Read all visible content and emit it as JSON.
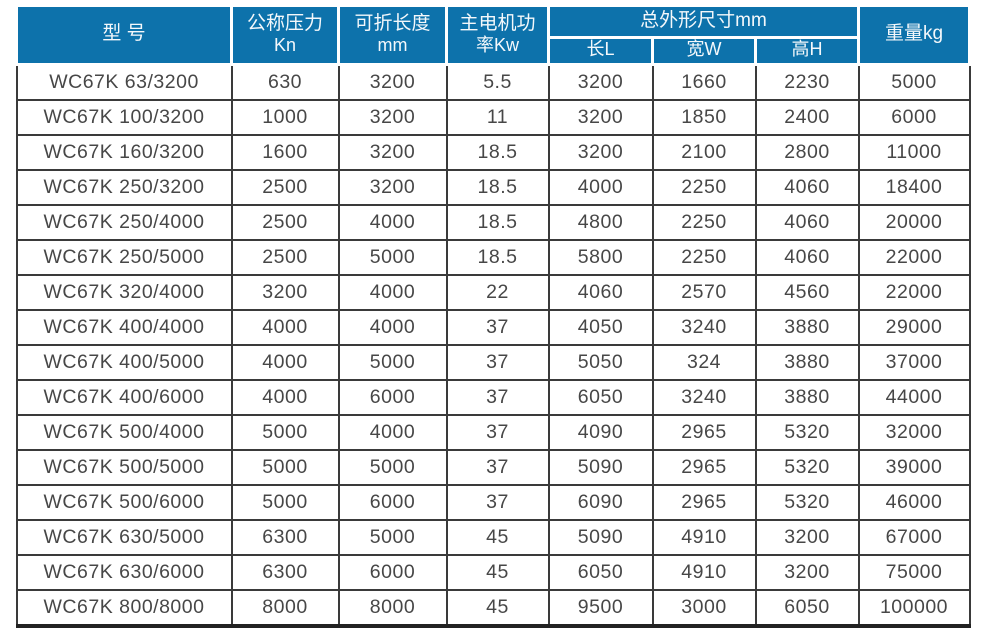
{
  "colors": {
    "header_bg": "#0d72ab",
    "header_text": "#f4f8fb",
    "grid_line": "#3a3a3a",
    "body_text": "#474747"
  },
  "table": {
    "header": {
      "model": "型 号",
      "pressure_line1": "公称压力",
      "pressure_line2": "Kn",
      "length_line1": "可折长度",
      "length_line2": "mm",
      "power_line1": "主电机功",
      "power_line2": "率Kw",
      "dims_group": "总外形尺寸mm",
      "dim_l": "长L",
      "dim_w": "宽W",
      "dim_h": "高H",
      "weight": "重量kg"
    },
    "rows": [
      [
        "WC67K 63/3200",
        "630",
        "3200",
        "5.5",
        "3200",
        "1660",
        "2230",
        "5000"
      ],
      [
        "WC67K 100/3200",
        "1000",
        "3200",
        "11",
        "3200",
        "1850",
        "2400",
        "6000"
      ],
      [
        "WC67K 160/3200",
        "1600",
        "3200",
        "18.5",
        "3200",
        "2100",
        "2800",
        "11000"
      ],
      [
        "WC67K 250/3200",
        "2500",
        "3200",
        "18.5",
        "4000",
        "2250",
        "4060",
        "18400"
      ],
      [
        "WC67K 250/4000",
        "2500",
        "4000",
        "18.5",
        "4800",
        "2250",
        "4060",
        "20000"
      ],
      [
        "WC67K 250/5000",
        "2500",
        "5000",
        "18.5",
        "5800",
        "2250",
        "4060",
        "22000"
      ],
      [
        "WC67K 320/4000",
        "3200",
        "4000",
        "22",
        "4060",
        "2570",
        "4560",
        "22000"
      ],
      [
        "WC67K 400/4000",
        "4000",
        "4000",
        "37",
        "4050",
        "3240",
        "3880",
        "29000"
      ],
      [
        "WC67K 400/5000",
        "4000",
        "5000",
        "37",
        "5050",
        "324",
        "3880",
        "37000"
      ],
      [
        "WC67K 400/6000",
        "4000",
        "6000",
        "37",
        "6050",
        "3240",
        "3880",
        "44000"
      ],
      [
        "WC67K 500/4000",
        "5000",
        "4000",
        "37",
        "4090",
        "2965",
        "5320",
        "32000"
      ],
      [
        "WC67K 500/5000",
        "5000",
        "5000",
        "37",
        "5090",
        "2965",
        "5320",
        "39000"
      ],
      [
        "WC67K 500/6000",
        "5000",
        "6000",
        "37",
        "6090",
        "2965",
        "5320",
        "46000"
      ],
      [
        "WC67K 630/5000",
        "6300",
        "5000",
        "45",
        "5090",
        "4910",
        "3200",
        "67000"
      ],
      [
        "WC67K 630/6000",
        "6300",
        "6000",
        "45",
        "6050",
        "4910",
        "3200",
        "75000"
      ],
      [
        "WC67K 800/8000",
        "8000",
        "8000",
        "45",
        "9500",
        "3000",
        "6050",
        "100000"
      ]
    ]
  }
}
